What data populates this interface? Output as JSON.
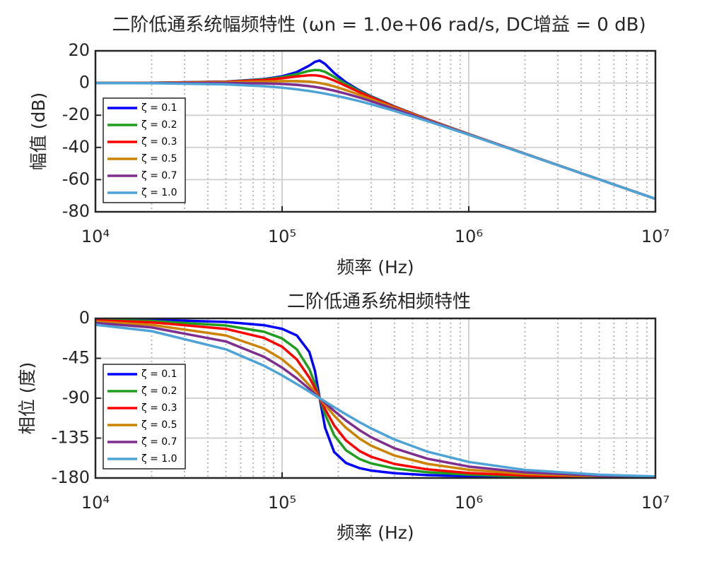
{
  "chart_data": [
    {
      "type": "line",
      "title": "二阶低通系统幅频特性 (ωn = 1.0e+06 rad/s, DC增益 = 0 dB)",
      "xlabel": "频率 (Hz)",
      "ylabel": "幅值 (dB)",
      "xscale": "log",
      "grid": true,
      "legend": "lower left",
      "xlim": [
        10000,
        10000000
      ],
      "xticks": [
        {
          "value": 10000,
          "label": "10⁴"
        },
        {
          "value": 100000,
          "label": "10⁵"
        },
        {
          "value": 1000000,
          "label": "10⁶"
        },
        {
          "value": 10000000,
          "label": "10⁷"
        }
      ],
      "ylim": [
        -80,
        20
      ],
      "yticks": [
        -80,
        -60,
        -40,
        -20,
        0,
        20
      ],
      "x": [
        10000,
        20000,
        50000,
        80000,
        100000,
        120000,
        140000,
        150000,
        159000,
        170000,
        190000,
        220000,
        260000,
        300000,
        400000,
        600000,
        1000000,
        2000000,
        5000000,
        10000000
      ],
      "series": [
        {
          "name": "ζ = 0.1",
          "color": "#0000ff",
          "values": [
            0.03,
            0.14,
            0.88,
            2.45,
            4.18,
            6.8,
            10.85,
            13.19,
            13.98,
            11.84,
            6.24,
            0.43,
            -4.61,
            -8.24,
            -14.55,
            -22.43,
            -31.71,
            -43.91,
            -59.88,
            -71.93
          ]
        },
        {
          "name": "ζ = 0.2",
          "color": "#1f9e1f",
          "values": [
            0.03,
            0.13,
            0.82,
            2.23,
            3.67,
            5.57,
            7.57,
            8.11,
            7.96,
            6.94,
            3.88,
            -0.55,
            -5.07,
            -8.51,
            -14.67,
            -22.48,
            -31.72,
            -43.92,
            -59.88,
            -71.93
          ]
        },
        {
          "name": "ζ = 0.3",
          "color": "#ff0000",
          "values": [
            0.03,
            0.11,
            0.72,
            1.87,
            2.94,
            4.08,
            4.82,
            4.79,
            4.44,
            3.66,
            1.59,
            -1.81,
            -5.73,
            -8.92,
            -14.85,
            -22.55,
            -31.75,
            -43.92,
            -59.88,
            -71.93
          ]
        },
        {
          "name": "ζ = 0.5",
          "color": "#cc8400",
          "values": [
            0.02,
            0.07,
            0.41,
            0.91,
            1.19,
            1.22,
            0.84,
            0.45,
            0,
            -0.65,
            -2.06,
            -4.38,
            -7.37,
            -10.03,
            -15.39,
            -22.76,
            -31.82,
            -43.94,
            -59.88,
            -71.93
          ]
        },
        {
          "name": "ζ = 0.7",
          "color": "#7e2f8e",
          "values": [
            0,
            0,
            -0.03,
            -0.23,
            -0.57,
            -1.14,
            -1.95,
            -2.44,
            -2.92,
            -3.53,
            -4.73,
            -6.6,
            -9.04,
            -11.3,
            -16.09,
            -23.06,
            -31.93,
            -43.97,
            -59.89,
            -71.93
          ]
        },
        {
          "name": "ζ = 1.0",
          "color": "#4da3d6",
          "values": [
            -0.03,
            -0.14,
            -0.82,
            -1.96,
            -2.89,
            -3.91,
            -4.98,
            -5.52,
            -6.02,
            -6.61,
            -7.7,
            -9.28,
            -11.29,
            -13.17,
            -17.29,
            -23.64,
            -32.14,
            -44.02,
            -59.9,
            -71.93
          ]
        }
      ]
    },
    {
      "type": "line",
      "title": "二阶低通系统相频特性",
      "xlabel": "频率 (Hz)",
      "ylabel": "相位 (度)",
      "xscale": "log",
      "grid": true,
      "legend": "lower left",
      "xlim": [
        10000,
        10000000
      ],
      "xticks": [
        {
          "value": 10000,
          "label": "10⁴"
        },
        {
          "value": 100000,
          "label": "10⁵"
        },
        {
          "value": 1000000,
          "label": "10⁶"
        },
        {
          "value": 10000000,
          "label": "10⁷"
        }
      ],
      "ylim": [
        -180,
        0
      ],
      "yticks": [
        -180,
        -135,
        -90,
        -45,
        0
      ],
      "x": [
        10000,
        20000,
        50000,
        80000,
        100000,
        120000,
        140000,
        150000,
        159000,
        170000,
        190000,
        220000,
        260000,
        300000,
        400000,
        600000,
        1000000,
        2000000,
        5000000,
        10000000
      ],
      "series": [
        {
          "name": "ζ = 0.1",
          "color": "#0000ff",
          "values": [
            -0.72,
            -1.46,
            -3.99,
            -7.66,
            -11.73,
            -19.26,
            -37.86,
            -59.35,
            -90,
            -123.39,
            -150.69,
            -163.12,
            -168.92,
            -171.6,
            -174.6,
            -176.73,
            -178.13,
            -179.08,
            -179.63,
            -179.82
          ]
        },
        {
          "name": "ζ = 0.2",
          "color": "#1f9e1f",
          "values": [
            -1.45,
            -2.92,
            -7.94,
            -15.06,
            -22.55,
            -34.95,
            -57.25,
            -73.5,
            -90,
            -108.24,
            -131.68,
            -148.74,
            -158.61,
            -163.55,
            -169.29,
            -173.49,
            -176.26,
            -178.17,
            -179.27,
            -179.64
          ]
        },
        {
          "name": "ζ = 0.3",
          "color": "#ff0000",
          "values": [
            -2.17,
            -4.38,
            -11.81,
            -21.98,
            -31.92,
            -46.36,
            -66.79,
            -78.83,
            -90,
            -102.39,
            -120.7,
            -137.68,
            -149.57,
            -156.11,
            -164.17,
            -170.28,
            -174.4,
            -177.25,
            -178.9,
            -179.45
          ]
        },
        {
          "name": "ζ = 0.5",
          "color": "#cc8400",
          "values": [
            -3.61,
            -7.28,
            -19.22,
            -33.93,
            -46.07,
            -60.22,
            -75.57,
            -83.24,
            -90,
            -97.51,
            -109.6,
            -123.38,
            -135.61,
            -143.56,
            -154.7,
            -164.07,
            -170.73,
            -175.42,
            -178.18,
            -179.09
          ]
        },
        {
          "name": "ζ = 0.7",
          "color": "#7e2f8e",
          "values": [
            -5.05,
            -10.13,
            -26.01,
            -43.28,
            -55.47,
            -67.77,
            -79.59,
            -85.16,
            -90,
            -95.38,
            -104.27,
            -115.2,
            -126.11,
            -134.05,
            -146.5,
            -158.23,
            -167.12,
            -173.6,
            -177.45,
            -178.72
          ]
        },
        {
          "name": "ζ = 1.0",
          "color": "#4da3d6",
          "values": [
            -7.19,
            -14.33,
            -34.88,
            -53.38,
            -64.28,
            -74.04,
            -82.68,
            -86.62,
            -90,
            -93.76,
            -100.1,
            -108.22,
            -117.06,
            -124.1,
            -136.6,
            -150.28,
            -161.92,
            -170.9,
            -176.35,
            -178.18
          ]
        }
      ]
    }
  ]
}
